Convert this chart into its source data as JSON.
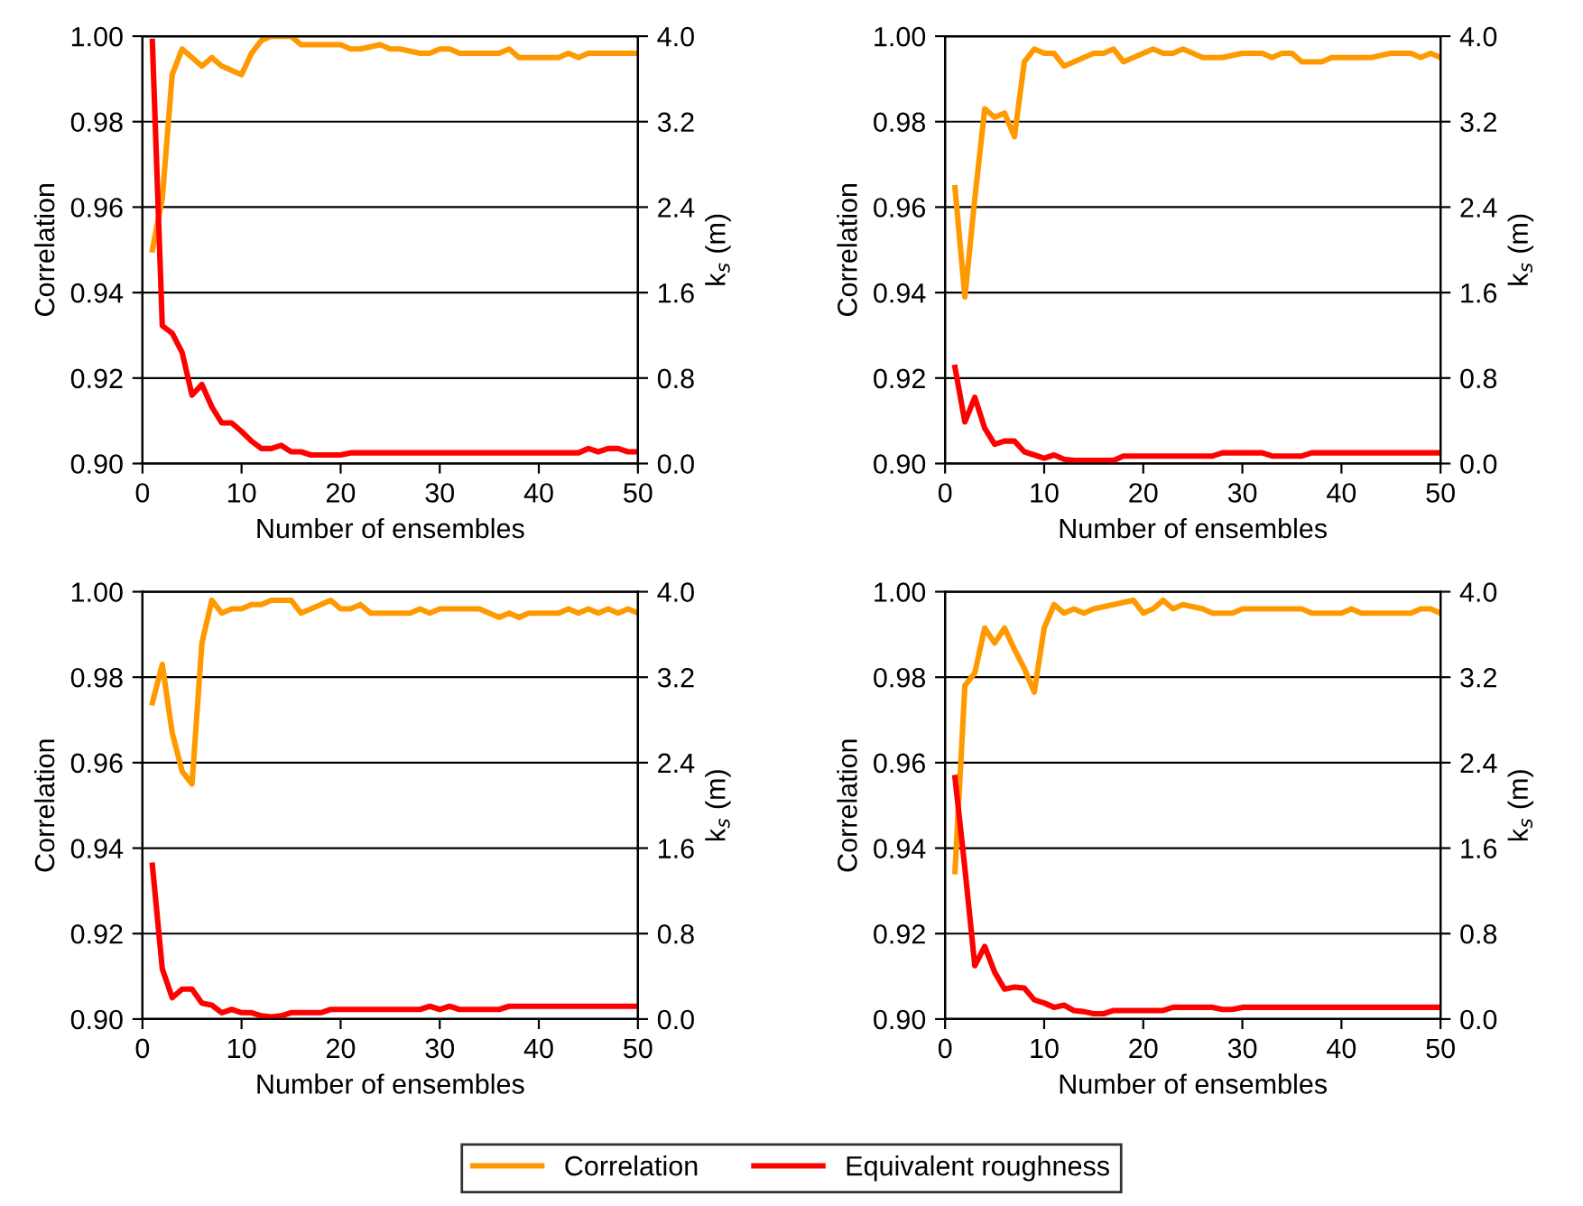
{
  "chart_data": [
    {
      "type": "line",
      "xlabel": "Number of ensembles",
      "ylabel": "Correlation",
      "y2label": "k$_{s}$ (m)",
      "xlim": [
        0,
        50
      ],
      "xticks": [
        0,
        10,
        20,
        30,
        40,
        50
      ],
      "ylim": [
        0.9,
        1.0
      ],
      "yticks": [
        {
          "value": 0.9,
          "label": "0.90"
        },
        {
          "value": 0.92,
          "label": "0.92"
        },
        {
          "value": 0.94,
          "label": "0.94"
        },
        {
          "value": 0.96,
          "label": "0.96"
        },
        {
          "value": 0.98,
          "label": "0.98"
        },
        {
          "value": 1.0,
          "label": "1.00"
        }
      ],
      "y2lim": [
        0,
        4
      ],
      "y2ticks": [
        {
          "value": 0,
          "label": "0.0"
        },
        {
          "value": 0.8,
          "label": "0.8"
        },
        {
          "value": 1.6,
          "label": "1.6"
        },
        {
          "value": 2.4,
          "label": "2.4"
        },
        {
          "value": 3.2,
          "label": "3.2"
        },
        {
          "value": 4,
          "label": "4.0"
        }
      ],
      "grid": "y",
      "legend": "bottom",
      "series": [
        {
          "color": "#ff9900",
          "x": [
            1,
            2,
            3,
            4,
            5,
            6,
            7,
            8,
            9,
            10,
            11,
            12,
            13,
            14,
            15,
            16,
            17,
            18,
            20,
            21,
            22,
            24,
            25,
            26,
            28,
            29,
            30,
            31,
            32,
            36,
            37,
            38,
            42,
            43,
            44,
            45,
            50
          ],
          "values": [
            0.95,
            0.962,
            0.991,
            0.997,
            0.995,
            0.993,
            0.995,
            0.993,
            0.992,
            0.991,
            0.996,
            0.999,
            1.0,
            1.0,
            1.0,
            0.998,
            0.998,
            0.998,
            0.998,
            0.997,
            0.997,
            0.998,
            0.997,
            0.997,
            0.996,
            0.996,
            0.997,
            0.997,
            0.996,
            0.996,
            0.997,
            0.995,
            0.995,
            0.996,
            0.995,
            0.996,
            0.996
          ]
        },
        {
          "color": "#ff0000",
          "axis": "y2",
          "x": [
            1,
            2,
            3,
            4,
            5,
            6,
            7,
            8,
            9,
            10,
            11,
            12,
            13,
            14,
            15,
            16,
            17,
            20,
            21,
            44,
            45,
            46,
            47,
            48,
            49,
            50
          ],
          "values": [
            3.95,
            1.29,
            1.22,
            1.04,
            0.64,
            0.74,
            0.53,
            0.38,
            0.38,
            0.3,
            0.21,
            0.14,
            0.14,
            0.17,
            0.11,
            0.11,
            0.08,
            0.08,
            0.1,
            0.1,
            0.14,
            0.11,
            0.14,
            0.14,
            0.11,
            0.11
          ]
        }
      ]
    },
    {
      "type": "line",
      "xlabel": "Number of ensembles",
      "ylabel": "Correlation",
      "y2label": "k$_{s}$ (m)",
      "xlim": [
        0,
        50
      ],
      "xticks": [
        0,
        10,
        20,
        30,
        40,
        50
      ],
      "ylim": [
        0.9,
        1.0
      ],
      "yticks": [
        {
          "value": 0.9,
          "label": "0.90"
        },
        {
          "value": 0.92,
          "label": "0.92"
        },
        {
          "value": 0.94,
          "label": "0.94"
        },
        {
          "value": 0.96,
          "label": "0.96"
        },
        {
          "value": 0.98,
          "label": "0.98"
        },
        {
          "value": 1.0,
          "label": "1.00"
        }
      ],
      "y2lim": [
        0,
        4
      ],
      "y2ticks": [
        {
          "value": 0,
          "label": "0.0"
        },
        {
          "value": 0.8,
          "label": "0.8"
        },
        {
          "value": 1.6,
          "label": "1.6"
        },
        {
          "value": 2.4,
          "label": "2.4"
        },
        {
          "value": 3.2,
          "label": "3.2"
        },
        {
          "value": 4,
          "label": "4.0"
        }
      ],
      "grid": "y",
      "legend": "bottom",
      "series": [
        {
          "color": "#ff9900",
          "x": [
            1,
            2,
            3,
            4,
            5,
            6,
            7,
            8,
            9,
            10,
            11,
            12,
            13,
            14,
            15,
            16,
            17,
            18,
            19,
            21,
            22,
            23,
            24,
            25,
            26,
            27,
            28,
            30,
            32,
            33,
            34,
            35,
            36,
            38,
            39,
            43,
            45,
            47,
            48,
            49,
            50
          ],
          "values": [
            0.9645,
            0.939,
            0.962,
            0.983,
            0.981,
            0.982,
            0.9765,
            0.994,
            0.997,
            0.996,
            0.996,
            0.993,
            0.994,
            0.995,
            0.996,
            0.996,
            0.997,
            0.994,
            0.995,
            0.997,
            0.996,
            0.996,
            0.997,
            0.996,
            0.995,
            0.995,
            0.995,
            0.996,
            0.996,
            0.995,
            0.996,
            0.996,
            0.994,
            0.994,
            0.995,
            0.995,
            0.996,
            0.996,
            0.995,
            0.996,
            0.995
          ]
        },
        {
          "color": "#ff0000",
          "axis": "y2",
          "x": [
            1,
            2,
            3,
            4,
            5,
            6,
            7,
            8,
            9,
            10,
            11,
            12,
            13,
            17,
            18,
            27,
            28,
            32,
            33,
            36,
            37,
            50
          ],
          "values": [
            0.9,
            0.39,
            0.62,
            0.33,
            0.18,
            0.21,
            0.21,
            0.11,
            0.08,
            0.05,
            0.08,
            0.04,
            0.03,
            0.03,
            0.07,
            0.07,
            0.1,
            0.1,
            0.07,
            0.07,
            0.1,
            0.1
          ]
        }
      ]
    },
    {
      "type": "line",
      "xlabel": "Number of ensembles",
      "ylabel": "Correlation",
      "y2label": "k$_{s}$ (m)",
      "xlim": [
        0,
        50
      ],
      "xticks": [
        0,
        10,
        20,
        30,
        40,
        50
      ],
      "ylim": [
        0.9,
        1.0
      ],
      "yticks": [
        {
          "value": 0.9,
          "label": "0.90"
        },
        {
          "value": 0.92,
          "label": "0.92"
        },
        {
          "value": 0.94,
          "label": "0.94"
        },
        {
          "value": 0.96,
          "label": "0.96"
        },
        {
          "value": 0.98,
          "label": "0.98"
        },
        {
          "value": 1.0,
          "label": "1.00"
        }
      ],
      "y2lim": [
        0,
        4
      ],
      "y2ticks": [
        {
          "value": 0,
          "label": "0.0"
        },
        {
          "value": 0.8,
          "label": "0.8"
        },
        {
          "value": 1.6,
          "label": "1.6"
        },
        {
          "value": 2.4,
          "label": "2.4"
        },
        {
          "value": 3.2,
          "label": "3.2"
        },
        {
          "value": 4,
          "label": "4.0"
        }
      ],
      "grid": "y",
      "legend": "bottom",
      "series": [
        {
          "color": "#ff9900",
          "x": [
            1,
            2,
            3,
            4,
            5,
            6,
            7,
            8,
            9,
            10,
            11,
            12,
            13,
            14,
            15,
            16,
            17,
            18,
            19,
            20,
            21,
            22,
            23,
            27,
            28,
            29,
            30,
            34,
            35,
            36,
            37,
            38,
            39,
            42,
            43,
            44,
            45,
            46,
            47,
            48,
            49,
            50
          ],
          "values": [
            0.974,
            0.983,
            0.967,
            0.958,
            0.955,
            0.988,
            0.998,
            0.995,
            0.996,
            0.996,
            0.997,
            0.997,
            0.998,
            0.998,
            0.998,
            0.995,
            0.996,
            0.997,
            0.998,
            0.996,
            0.996,
            0.997,
            0.995,
            0.995,
            0.996,
            0.995,
            0.996,
            0.996,
            0.995,
            0.994,
            0.995,
            0.994,
            0.995,
            0.995,
            0.996,
            0.995,
            0.996,
            0.995,
            0.996,
            0.995,
            0.996,
            0.995
          ]
        },
        {
          "color": "#ff0000",
          "axis": "y2",
          "x": [
            1,
            2,
            3,
            4,
            5,
            6,
            7,
            8,
            9,
            10,
            11,
            12,
            13,
            14,
            15,
            18,
            19,
            28,
            29,
            30,
            31,
            32,
            36,
            37,
            50
          ],
          "values": [
            1.44,
            0.47,
            0.2,
            0.28,
            0.28,
            0.15,
            0.13,
            0.06,
            0.09,
            0.06,
            0.06,
            0.03,
            0.02,
            0.03,
            0.06,
            0.06,
            0.09,
            0.09,
            0.12,
            0.09,
            0.12,
            0.09,
            0.09,
            0.12,
            0.12
          ]
        }
      ]
    },
    {
      "type": "line",
      "xlabel": "Number of ensembles",
      "ylabel": "Correlation",
      "y2label": "k$_{s}$ (m)",
      "xlim": [
        0,
        50
      ],
      "xticks": [
        0,
        10,
        20,
        30,
        40,
        50
      ],
      "ylim": [
        0.9,
        1.0
      ],
      "yticks": [
        {
          "value": 0.9,
          "label": "0.90"
        },
        {
          "value": 0.92,
          "label": "0.92"
        },
        {
          "value": 0.94,
          "label": "0.94"
        },
        {
          "value": 0.96,
          "label": "0.96"
        },
        {
          "value": 0.98,
          "label": "0.98"
        },
        {
          "value": 1.0,
          "label": "1.00"
        }
      ],
      "y2lim": [
        0,
        4
      ],
      "y2ticks": [
        {
          "value": 0,
          "label": "0.0"
        },
        {
          "value": 0.8,
          "label": "0.8"
        },
        {
          "value": 1.6,
          "label": "1.6"
        },
        {
          "value": 2.4,
          "label": "2.4"
        },
        {
          "value": 3.2,
          "label": "3.2"
        },
        {
          "value": 4,
          "label": "4.0"
        }
      ],
      "grid": "y",
      "legend": "bottom",
      "series": [
        {
          "name": "Correlation",
          "color": "#ff9900",
          "x": [
            1,
            2,
            3,
            4,
            5,
            6,
            7,
            8,
            9,
            10,
            11,
            12,
            13,
            14,
            15,
            17,
            19,
            20,
            21,
            22,
            23,
            24,
            26,
            27,
            29,
            30,
            36,
            37,
            40,
            41,
            42,
            47,
            48,
            49,
            50
          ],
          "values": [
            0.9345,
            0.978,
            0.981,
            0.9915,
            0.988,
            0.9915,
            0.9865,
            0.982,
            0.9765,
            0.9915,
            0.997,
            0.995,
            0.996,
            0.995,
            0.996,
            0.997,
            0.998,
            0.995,
            0.996,
            0.998,
            0.996,
            0.997,
            0.996,
            0.995,
            0.995,
            0.996,
            0.996,
            0.995,
            0.995,
            0.996,
            0.995,
            0.995,
            0.996,
            0.996,
            0.995
          ]
        },
        {
          "name": "Equivalent roughness",
          "color": "#ff0000",
          "axis": "y2",
          "x": [
            1,
            2,
            3,
            4,
            5,
            6,
            7,
            8,
            9,
            10,
            11,
            12,
            13,
            14,
            15,
            16,
            17,
            22,
            23,
            27,
            28,
            29,
            30,
            50
          ],
          "values": [
            2.26,
            1.41,
            0.5,
            0.68,
            0.44,
            0.28,
            0.3,
            0.29,
            0.18,
            0.15,
            0.11,
            0.13,
            0.08,
            0.07,
            0.05,
            0.05,
            0.08,
            0.08,
            0.11,
            0.11,
            0.09,
            0.09,
            0.11,
            0.11
          ]
        }
      ]
    }
  ]
}
